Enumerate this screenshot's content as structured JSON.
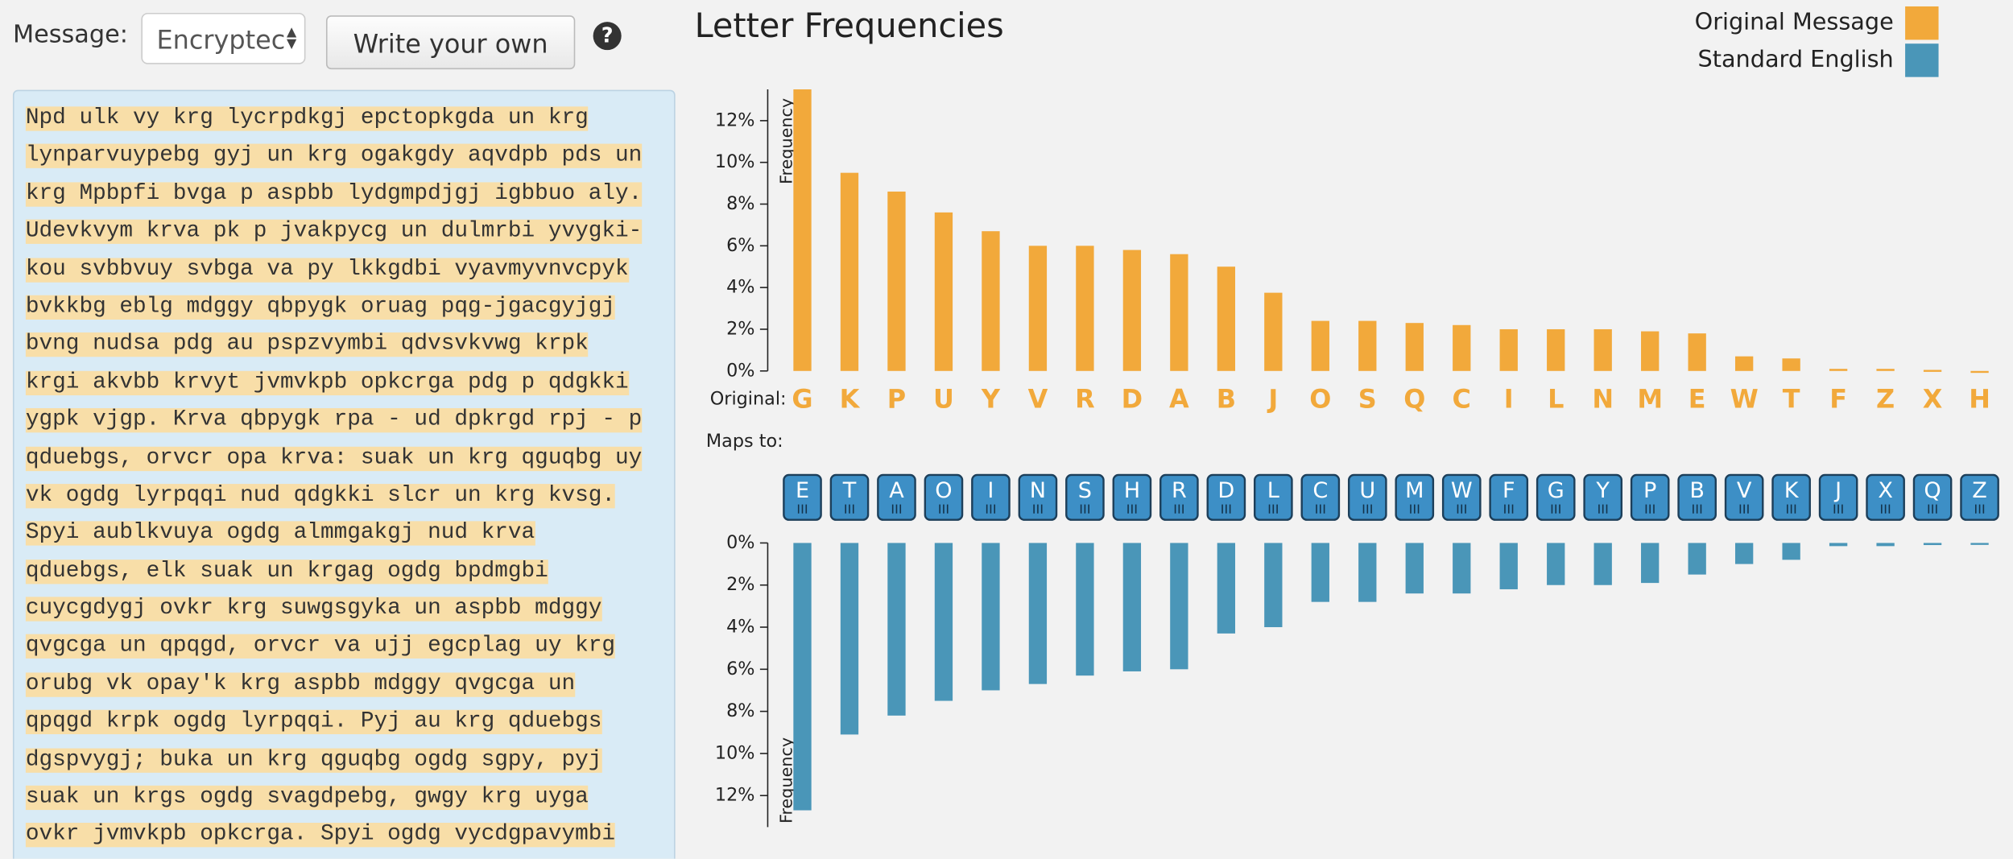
{
  "controls": {
    "message_label": "Message:",
    "select_value": "Encryptec",
    "button": "Write your own",
    "help": "?"
  },
  "passage": [
    "Npd ulk vy krg lycrpdkgj epctopkgda un krg",
    "lynparvuypebg gyj un krg ogakgdy aqvdpb pds un",
    "krg Mpbpfi bvga p aspbb lydgmpdjgj igbbuo aly.",
    "Udevkvym krva pk p jvakpycg un dulmrbi yvygki-",
    "kou svbbvuy svbga va py lkkgdbi vyavmyvnvcpyk",
    "bvkkbg eblg mdggy qbpygk oruag pqg-jgacgyjgj",
    "bvng nudsa pdg au pspzvymbi qdvsvkvwg krpk",
    "krgi akvbb krvyt jvmvkpb opkcrga pdg p qdgkki",
    "ygpk vjgp. Krva qbpygk rpa - ud dpkrgd rpj - p",
    "qduebgs, orvcr opa krva: suak un krg qguqbg uy",
    "vk ogdg lyrpqqi nud qdgkki slcr un krg kvsg.",
    "Spyi aublkvuya ogdg almmgakgj nud krva",
    "qduebgs, elk suak un krgag ogdg bpdmgbi",
    "cuycgdygj ovkr krg suwgsgyka un aspbb mdggy",
    "qvgcga un qpqgd, orvcr va ujj egcplag uy krg",
    "orubg vk opay'k krg aspbb mdggy qvgcga un",
    "qpqgd krpk ogdg lyrpqqi. Pyj au krg qduebgs",
    "dgspvygj; buka un krg qguqbg ogdg sgpy, pyj",
    "suak un krgs ogdg svagdpebg, gwgy krg uyga",
    "ovkr jvmvkpb opkcrga. Spyi ogdg vycdgpavymbi"
  ],
  "title": "Letter Frequencies",
  "row_labels": {
    "original": "Original:",
    "maps_to": "Maps to:"
  },
  "chart_data": [
    {
      "type": "bar",
      "name": "Original Message",
      "color": "#f2a93b",
      "y_label": "Frequency",
      "categories": [
        "G",
        "K",
        "P",
        "U",
        "Y",
        "V",
        "R",
        "D",
        "A",
        "B",
        "J",
        "O",
        "S",
        "Q",
        "C",
        "I",
        "L",
        "N",
        "M",
        "E",
        "W",
        "T",
        "F",
        "Z",
        "X",
        "H"
      ],
      "values": [
        13.5,
        9.5,
        8.6,
        7.6,
        6.7,
        6.0,
        6.0,
        5.8,
        5.6,
        5.0,
        3.75,
        2.4,
        2.4,
        2.3,
        2.2,
        2.0,
        2.0,
        2.0,
        1.9,
        1.8,
        0.7,
        0.6,
        0.1,
        0.1,
        0.05,
        0
      ],
      "ylim": [
        0,
        13.5
      ],
      "yticks": [
        {
          "value": 0,
          "label": "0%"
        },
        {
          "value": 2,
          "label": "2%"
        },
        {
          "value": 4,
          "label": "4%"
        },
        {
          "value": 6,
          "label": "6%"
        },
        {
          "value": 8,
          "label": "8%"
        },
        {
          "value": 10,
          "label": "10%"
        },
        {
          "value": 12,
          "label": "12%"
        }
      ]
    },
    {
      "type": "bar",
      "name": "Standard English",
      "color": "#4a96b8",
      "y_label": "Frequency",
      "categories": [
        "E",
        "T",
        "A",
        "O",
        "I",
        "N",
        "S",
        "H",
        "R",
        "D",
        "L",
        "C",
        "U",
        "M",
        "W",
        "F",
        "G",
        "Y",
        "P",
        "B",
        "V",
        "K",
        "J",
        "X",
        "Q",
        "Z"
      ],
      "values": [
        12.7,
        9.1,
        8.2,
        7.5,
        7.0,
        6.7,
        6.3,
        6.1,
        6.0,
        4.3,
        4.0,
        2.8,
        2.8,
        2.4,
        2.4,
        2.2,
        2.0,
        2.0,
        1.9,
        1.5,
        1.0,
        0.8,
        0.15,
        0.15,
        0.1,
        0.07
      ],
      "ylim": [
        0,
        13.5
      ],
      "yticks": [
        {
          "value": 0,
          "label": "0%"
        },
        {
          "value": 2,
          "label": "2%"
        },
        {
          "value": 4,
          "label": "4%"
        },
        {
          "value": 6,
          "label": "6%"
        },
        {
          "value": 8,
          "label": "8%"
        },
        {
          "value": 10,
          "label": "10%"
        },
        {
          "value": 12,
          "label": "12%"
        }
      ]
    }
  ]
}
